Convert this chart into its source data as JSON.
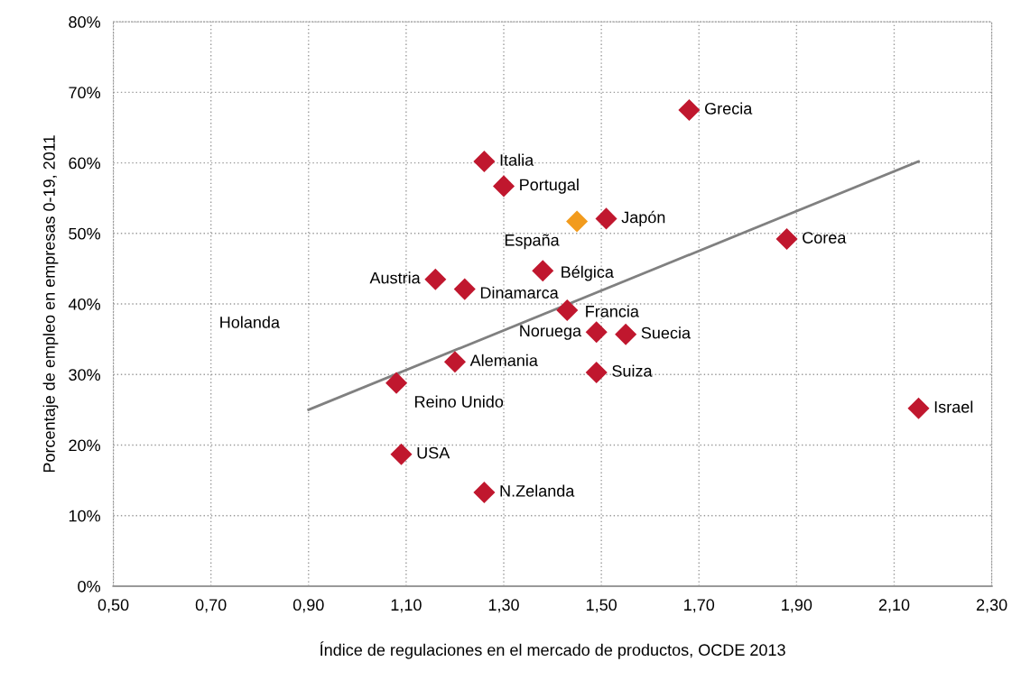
{
  "chart_data": {
    "type": "scatter",
    "xlabel": "Índice de regulaciones en el mercado de productos, OCDE 2013",
    "ylabel": "Porcentaje de empleo en empresas 0-19, 2011",
    "xlim": [
      0.5,
      2.3
    ],
    "xticks": [
      {
        "value": 0.5,
        "label": "0,50"
      },
      {
        "value": 0.7,
        "label": "0,70"
      },
      {
        "value": 0.9,
        "label": "0,90"
      },
      {
        "value": 1.1,
        "label": "1,10"
      },
      {
        "value": 1.3,
        "label": "1,30"
      },
      {
        "value": 1.5,
        "label": "1,50"
      },
      {
        "value": 1.7,
        "label": "1,70"
      },
      {
        "value": 1.9,
        "label": "1,90"
      },
      {
        "value": 2.1,
        "label": "2,10"
      },
      {
        "value": 2.3,
        "label": "2,30"
      }
    ],
    "ylim": [
      0,
      80
    ],
    "yticks": [
      {
        "value": 0,
        "label": "0%"
      },
      {
        "value": 10,
        "label": "10%"
      },
      {
        "value": 20,
        "label": "20%"
      },
      {
        "value": 30,
        "label": "30%"
      },
      {
        "value": 40,
        "label": "40%"
      },
      {
        "value": 50,
        "label": "50%"
      },
      {
        "value": 60,
        "label": "60%"
      },
      {
        "value": 70,
        "label": "70%"
      },
      {
        "value": 80,
        "label": "80%"
      }
    ],
    "grid": true,
    "legend": false,
    "series": [
      {
        "marker": "diamond",
        "x": [
          1.68,
          1.26,
          1.3,
          1.51,
          1.88,
          1.38,
          1.16,
          1.22,
          1.43,
          1.49,
          1.55,
          1.2,
          1.49,
          1.08,
          2.15,
          1.09,
          1.26
        ],
        "values": [
          67.5,
          60.2,
          56.7,
          52.1,
          49.2,
          44.7,
          43.5,
          42.1,
          39.1,
          36.0,
          35.7,
          31.8,
          30.3,
          28.8,
          25.2,
          18.7,
          13.3
        ],
        "color": "#c0172e"
      },
      {
        "marker": "diamond",
        "x": [
          1.45
        ],
        "values": [
          51.7
        ],
        "color": "#f29b1d"
      },
      {
        "type": "line",
        "x": [
          0.9,
          2.15
        ],
        "values": [
          25.0,
          60.2
        ],
        "color": "#808080"
      }
    ],
    "annotations": [
      {
        "text": "Grecia",
        "x": 1.68,
        "y": 67.5
      },
      {
        "text": "Italia",
        "x": 1.26,
        "y": 60.2
      },
      {
        "text": "Portugal",
        "x": 1.3,
        "y": 56.7
      },
      {
        "text": "Japón",
        "x": 1.51,
        "y": 52.1
      },
      {
        "text": "Corea",
        "x": 1.88,
        "y": 49.2
      },
      {
        "text": "Bélgica",
        "x": 1.38,
        "y": 44.7
      },
      {
        "text": "Austria",
        "x": 1.16,
        "y": 43.5
      },
      {
        "text": "Dinamarca",
        "x": 1.22,
        "y": 42.1
      },
      {
        "text": "Francia",
        "x": 1.43,
        "y": 39.1
      },
      {
        "text": "Noruega",
        "x": 1.49,
        "y": 36.0
      },
      {
        "text": "Suecia",
        "x": 1.55,
        "y": 35.7
      },
      {
        "text": "Alemania",
        "x": 1.2,
        "y": 31.8
      },
      {
        "text": "Suiza",
        "x": 1.49,
        "y": 30.3
      },
      {
        "text": "Reino Unido",
        "x": 1.08,
        "y": 28.8
      },
      {
        "text": "Israel",
        "x": 2.15,
        "y": 25.2
      },
      {
        "text": "USA",
        "x": 1.09,
        "y": 18.7
      },
      {
        "text": "N.Zelanda",
        "x": 1.26,
        "y": 13.3
      },
      {
        "text": "España",
        "x": 1.45,
        "y": 51.7
      },
      "Holanda"
    ]
  }
}
